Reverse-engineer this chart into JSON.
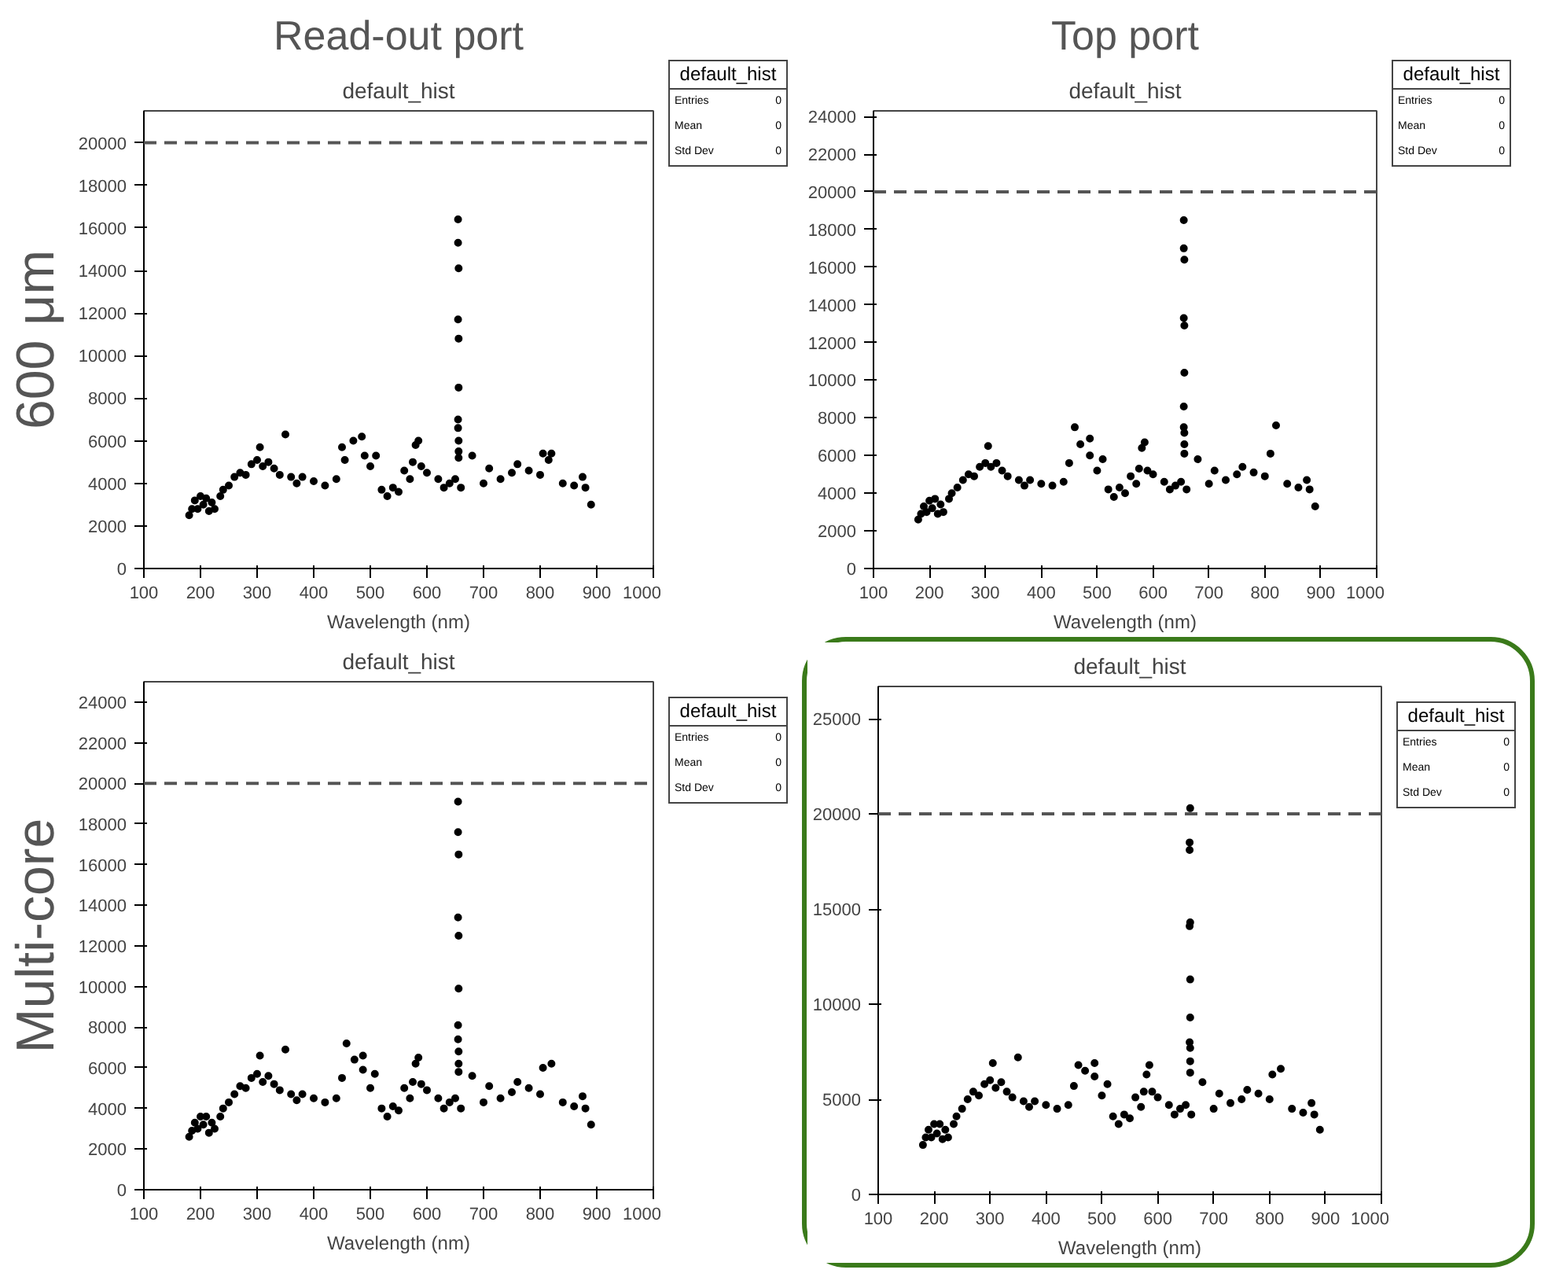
{
  "chart_data": [
    {
      "type": "scatter",
      "title": "default_hist",
      "subtitle": "Read-out port",
      "ylabel": "600 μm",
      "xlabel": "Wavelength (nm)",
      "marker": "circle",
      "grid": false,
      "xlim": [
        100,
        1000
      ],
      "xticks": [
        100,
        200,
        300,
        400,
        500,
        600,
        700,
        800,
        900,
        1000
      ],
      "ylim": [
        0,
        21500
      ],
      "yticks": [
        0,
        2000,
        4000,
        6000,
        8000,
        10000,
        12000,
        14000,
        16000,
        18000,
        20000
      ],
      "ref_lines": [
        {
          "axis": "y",
          "value": 20000,
          "line_style": "dashed",
          "color": "#555555"
        }
      ],
      "annotations": [
        "default_hist",
        "Entries",
        "0",
        "Mean",
        "0",
        "Std Dev",
        "0"
      ],
      "series": [
        {
          "color": "#000000",
          "x": [
            180,
            185,
            190,
            195,
            200,
            205,
            210,
            215,
            220,
            225,
            235,
            240,
            250,
            260,
            270,
            280,
            290,
            300,
            305,
            310,
            320,
            330,
            340,
            350,
            360,
            370,
            380,
            400,
            420,
            440,
            450,
            455,
            470,
            485,
            490,
            500,
            510,
            520,
            530,
            540,
            550,
            560,
            570,
            575,
            580,
            585,
            590,
            600,
            620,
            630,
            640,
            650,
            655,
            655,
            656,
            655,
            656,
            656,
            655,
            655,
            656,
            656,
            656,
            660,
            680,
            700,
            710,
            730,
            750,
            760,
            780,
            800,
            805,
            815,
            820,
            840,
            860,
            875,
            880,
            890
          ],
          "values": [
            2500,
            2800,
            3200,
            2800,
            3400,
            3000,
            3300,
            2700,
            3100,
            2800,
            3400,
            3700,
            3900,
            4300,
            4500,
            4400,
            4900,
            5100,
            5700,
            4800,
            5000,
            4700,
            4400,
            6300,
            4300,
            4000,
            4300,
            4100,
            3900,
            4200,
            5700,
            5100,
            6000,
            6200,
            5300,
            4800,
            5300,
            3700,
            3400,
            3800,
            3600,
            4600,
            4200,
            5000,
            5800,
            6000,
            4800,
            4500,
            4200,
            3800,
            4000,
            4200,
            16400,
            15300,
            14100,
            11700,
            10800,
            8500,
            7000,
            6600,
            6000,
            5500,
            5200,
            3800,
            5300,
            4000,
            4700,
            4200,
            4500,
            4900,
            4600,
            4400,
            5400,
            5100,
            5400,
            4000,
            3900,
            4300,
            3800,
            3000
          ]
        }
      ]
    },
    {
      "type": "scatter",
      "title": "default_hist",
      "subtitle": "Top port",
      "xlabel": "Wavelength (nm)",
      "marker": "circle",
      "grid": false,
      "xlim": [
        100,
        1000
      ],
      "xticks": [
        100,
        200,
        300,
        400,
        500,
        600,
        700,
        800,
        900,
        1000
      ],
      "ylim": [
        0,
        24300
      ],
      "yticks": [
        0,
        2000,
        4000,
        6000,
        8000,
        10000,
        12000,
        14000,
        16000,
        18000,
        20000,
        22000,
        24000
      ],
      "ref_lines": [
        {
          "axis": "y",
          "value": 20000,
          "line_style": "dashed",
          "color": "#555555"
        }
      ],
      "annotations": [
        "default_hist",
        "Entries",
        "0",
        "Mean",
        "0",
        "Std Dev",
        "0"
      ],
      "series": [
        {
          "color": "#000000",
          "x": [
            180,
            185,
            190,
            195,
            200,
            205,
            210,
            215,
            220,
            225,
            235,
            240,
            250,
            260,
            270,
            280,
            290,
            300,
            305,
            310,
            320,
            330,
            340,
            360,
            370,
            380,
            400,
            420,
            440,
            450,
            460,
            470,
            487,
            487,
            500,
            510,
            520,
            530,
            540,
            550,
            560,
            570,
            575,
            580,
            585,
            590,
            600,
            620,
            630,
            640,
            650,
            655,
            655,
            656,
            655,
            656,
            656,
            655,
            655,
            656,
            656,
            656,
            660,
            680,
            700,
            710,
            730,
            750,
            760,
            780,
            800,
            810,
            820,
            840,
            860,
            875,
            880,
            890
          ],
          "values": [
            2600,
            2900,
            3300,
            3000,
            3600,
            3200,
            3700,
            2900,
            3400,
            3000,
            3700,
            4000,
            4300,
            4700,
            5000,
            4900,
            5400,
            5600,
            6500,
            5400,
            5600,
            5200,
            4900,
            4700,
            4400,
            4700,
            4500,
            4400,
            4600,
            5600,
            7500,
            6600,
            6900,
            6000,
            5200,
            5800,
            4200,
            3800,
            4300,
            4000,
            4900,
            4500,
            5300,
            6400,
            6700,
            5200,
            5000,
            4600,
            4200,
            4400,
            4600,
            18500,
            17000,
            16400,
            13300,
            12900,
            10400,
            8600,
            7500,
            7200,
            6600,
            6100,
            4200,
            5800,
            4500,
            5200,
            4700,
            5000,
            5400,
            5100,
            4900,
            6100,
            7600,
            4500,
            4300,
            4700,
            4200,
            3300
          ]
        }
      ]
    },
    {
      "type": "scatter",
      "title": "default_hist",
      "ylabel": "Multi-core",
      "xlabel": "Wavelength (nm)",
      "marker": "circle",
      "grid": false,
      "xlim": [
        100,
        1000
      ],
      "xticks": [
        100,
        200,
        300,
        400,
        500,
        600,
        700,
        800,
        900,
        1000
      ],
      "ylim": [
        0,
        25000
      ],
      "yticks": [
        0,
        2000,
        4000,
        6000,
        8000,
        10000,
        12000,
        14000,
        16000,
        18000,
        20000,
        22000,
        24000
      ],
      "ref_lines": [
        {
          "axis": "y",
          "value": 20000,
          "line_style": "dashed",
          "color": "#555555"
        }
      ],
      "annotations": [
        "default_hist",
        "Entries",
        "0",
        "Mean",
        "0",
        "Std Dev",
        "0"
      ],
      "series": [
        {
          "color": "#000000",
          "x": [
            180,
            185,
            190,
            195,
            200,
            205,
            210,
            215,
            220,
            225,
            235,
            240,
            250,
            260,
            270,
            280,
            290,
            300,
            305,
            310,
            320,
            330,
            340,
            350,
            360,
            370,
            380,
            400,
            420,
            440,
            450,
            458,
            472,
            487,
            487,
            500,
            508,
            520,
            530,
            540,
            550,
            560,
            570,
            575,
            580,
            585,
            590,
            600,
            620,
            630,
            640,
            650,
            655,
            655,
            656,
            655,
            656,
            656,
            655,
            655,
            656,
            656,
            656,
            660,
            680,
            700,
            710,
            730,
            750,
            760,
            780,
            800,
            805,
            820,
            840,
            860,
            875,
            880,
            890
          ],
          "values": [
            2600,
            2900,
            3300,
            3000,
            3600,
            3200,
            3600,
            2800,
            3300,
            3000,
            3600,
            4000,
            4300,
            4700,
            5100,
            5000,
            5500,
            5700,
            6600,
            5300,
            5600,
            5200,
            4900,
            6900,
            4700,
            4400,
            4700,
            4500,
            4300,
            4500,
            5500,
            7200,
            6400,
            6600,
            5900,
            5000,
            5700,
            4000,
            3600,
            4100,
            3900,
            5000,
            4500,
            5300,
            6200,
            6500,
            5200,
            4900,
            4500,
            4000,
            4300,
            4500,
            19100,
            17600,
            16500,
            13400,
            12500,
            9900,
            8100,
            7400,
            6800,
            6200,
            5800,
            4000,
            5600,
            4300,
            5100,
            4500,
            4800,
            5300,
            5000,
            4700,
            6000,
            6200,
            4300,
            4100,
            4600,
            4000,
            3200
          ]
        }
      ]
    },
    {
      "type": "scatter",
      "title": "default_hist",
      "xlabel": "Wavelength (nm)",
      "marker": "circle",
      "grid": false,
      "xlim": [
        100,
        1000
      ],
      "xticks": [
        100,
        200,
        300,
        400,
        500,
        600,
        700,
        800,
        900,
        1000
      ],
      "ylim": [
        0,
        26700
      ],
      "yticks": [
        0,
        5000,
        10000,
        15000,
        20000,
        25000
      ],
      "ref_lines": [
        {
          "axis": "y",
          "value": 20000,
          "line_style": "dashed",
          "color": "#555555"
        }
      ],
      "annotations": [
        "default_hist",
        "Entries",
        "0",
        "Mean",
        "0",
        "Std Dev",
        "0"
      ],
      "series": [
        {
          "color": "#000000",
          "x": [
            180,
            185,
            190,
            195,
            200,
            205,
            210,
            215,
            220,
            225,
            235,
            240,
            250,
            260,
            270,
            280,
            290,
            300,
            305,
            310,
            320,
            330,
            340,
            350,
            360,
            370,
            380,
            400,
            420,
            440,
            450,
            458,
            470,
            487,
            487,
            500,
            510,
            520,
            530,
            540,
            550,
            560,
            570,
            575,
            580,
            585,
            590,
            600,
            620,
            630,
            640,
            650,
            658,
            657,
            657,
            658,
            657,
            658,
            658,
            657,
            658,
            658,
            658,
            660,
            680,
            700,
            710,
            730,
            750,
            760,
            780,
            800,
            805,
            820,
            840,
            860,
            875,
            880,
            890
          ],
          "values": [
            2600,
            3000,
            3400,
            3000,
            3700,
            3200,
            3700,
            2900,
            3400,
            3000,
            3700,
            4100,
            4500,
            5000,
            5400,
            5200,
            5800,
            6000,
            6900,
            5600,
            5900,
            5400,
            5100,
            7200,
            4900,
            4600,
            4900,
            4700,
            4500,
            4700,
            5700,
            6800,
            6500,
            6900,
            6200,
            5200,
            5800,
            4100,
            3700,
            4200,
            4000,
            5100,
            4600,
            5400,
            6300,
            6800,
            5400,
            5100,
            4700,
            4200,
            4500,
            4700,
            20300,
            18500,
            18100,
            14300,
            14100,
            11300,
            9300,
            8000,
            7700,
            7000,
            6400,
            4200,
            5900,
            4500,
            5300,
            4800,
            5000,
            5500,
            5300,
            5000,
            6300,
            6600,
            4500,
            4300,
            4800,
            4200,
            3400
          ]
        }
      ]
    }
  ]
}
